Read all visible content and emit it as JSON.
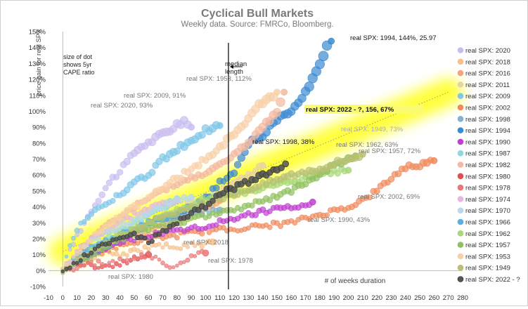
{
  "chart_data": {
    "type": "scatter",
    "title": "Cyclical Bull Markets",
    "subtitle": "Weekly data.  Source: FMRCo, Bloomberg.",
    "xlabel": "# of weeks duration",
    "ylabel": "price gain for real SPX",
    "xlim": [
      -10,
      280
    ],
    "ylim": [
      -10,
      150
    ],
    "x_ticks": [
      "-10",
      "0",
      "10",
      "20",
      "30",
      "40",
      "50",
      "60",
      "70",
      "80",
      "90",
      "100",
      "110",
      "120",
      "130",
      "140",
      "150",
      "160",
      "170",
      "180",
      "190",
      "200",
      "210",
      "220",
      "230",
      "240",
      "250",
      "260",
      "270",
      "280"
    ],
    "y_ticks": [
      "-10%",
      "0%",
      "10%",
      "20%",
      "30%",
      "40%",
      "50%",
      "60%",
      "70%",
      "80%",
      "90%",
      "100%",
      "110%",
      "120%",
      "130%",
      "140%",
      "150%"
    ],
    "grid": false,
    "legend_position": "right",
    "size_note": "size of dot shows 5yr CAPE ratio",
    "median_label": "median length",
    "median_x": 116,
    "trend": {
      "from": [
        0,
        12
      ],
      "to": [
        270,
        112
      ]
    },
    "series": [
      {
        "name": "real SPX: 2020",
        "color": "#c9bdf0",
        "end_label": "real SPX: 2020, 93%",
        "points": [
          [
            0,
            0
          ],
          [
            5,
            12
          ],
          [
            10,
            22
          ],
          [
            15,
            30
          ],
          [
            20,
            38
          ],
          [
            25,
            45
          ],
          [
            30,
            52
          ],
          [
            35,
            58
          ],
          [
            40,
            62
          ],
          [
            45,
            68
          ],
          [
            50,
            74
          ],
          [
            55,
            78
          ],
          [
            60,
            80
          ],
          [
            65,
            83
          ],
          [
            70,
            86
          ],
          [
            75,
            88
          ],
          [
            80,
            92
          ],
          [
            85,
            93
          ],
          [
            90,
            90
          ]
        ]
      },
      {
        "name": "real SPX: 2018",
        "color": "#f5c08c",
        "points": [
          [
            0,
            0
          ],
          [
            10,
            4
          ],
          [
            20,
            8
          ],
          [
            30,
            12
          ],
          [
            40,
            10
          ],
          [
            50,
            12
          ],
          [
            60,
            14
          ],
          [
            70,
            16
          ],
          [
            80,
            14
          ],
          [
            90,
            17
          ],
          [
            100,
            16
          ],
          [
            105,
            18
          ]
        ]
      },
      {
        "name": "real SPX: 2016",
        "color": "#f4a582",
        "points": [
          [
            0,
            0
          ],
          [
            10,
            5
          ],
          [
            20,
            10
          ],
          [
            30,
            14
          ],
          [
            40,
            18
          ],
          [
            50,
            22
          ],
          [
            60,
            24
          ],
          [
            70,
            28
          ],
          [
            80,
            32
          ],
          [
            90,
            36
          ],
          [
            100,
            40
          ],
          [
            110,
            44
          ]
        ]
      },
      {
        "name": "real SPX: 2011",
        "color": "#e6d3a8",
        "points": [
          [
            0,
            0
          ],
          [
            10,
            6
          ],
          [
            20,
            12
          ],
          [
            30,
            18
          ],
          [
            40,
            22
          ],
          [
            50,
            26
          ],
          [
            60,
            30
          ],
          [
            70,
            34
          ],
          [
            80,
            38
          ],
          [
            90,
            42
          ],
          [
            100,
            46
          ],
          [
            110,
            50
          ],
          [
            120,
            55
          ],
          [
            130,
            60
          ],
          [
            140,
            66
          ]
        ]
      },
      {
        "name": "real SPX: 2009",
        "color": "#7fc8e8",
        "end_label": "real SPX: 2009, 91%",
        "points": [
          [
            0,
            0
          ],
          [
            5,
            15
          ],
          [
            10,
            25
          ],
          [
            15,
            32
          ],
          [
            20,
            36
          ],
          [
            25,
            40
          ],
          [
            30,
            42
          ],
          [
            40,
            48
          ],
          [
            50,
            55
          ],
          [
            60,
            60
          ],
          [
            70,
            70
          ],
          [
            80,
            76
          ],
          [
            90,
            82
          ],
          [
            100,
            88
          ],
          [
            110,
            91
          ]
        ]
      },
      {
        "name": "real SPX: 2002",
        "color": "#f08a5d",
        "end_label": "real SPX: 2002, 69%",
        "points": [
          [
            0,
            0
          ],
          [
            20,
            10
          ],
          [
            40,
            15
          ],
          [
            60,
            20
          ],
          [
            80,
            22
          ],
          [
            100,
            25
          ],
          [
            120,
            26
          ],
          [
            140,
            28
          ],
          [
            160,
            30
          ],
          [
            180,
            35
          ],
          [
            200,
            40
          ],
          [
            210,
            44
          ],
          [
            220,
            50
          ],
          [
            230,
            58
          ],
          [
            240,
            65
          ],
          [
            250,
            66
          ],
          [
            260,
            69
          ]
        ]
      },
      {
        "name": "real SPX: 1998",
        "color": "#7fb2d6",
        "end_label": "real SPX: 1998, 38%",
        "points": [
          [
            0,
            0
          ],
          [
            10,
            5
          ],
          [
            20,
            10
          ],
          [
            30,
            15
          ],
          [
            40,
            20
          ],
          [
            50,
            25
          ],
          [
            60,
            28
          ],
          [
            70,
            32
          ],
          [
            80,
            35
          ],
          [
            90,
            36
          ],
          [
            100,
            37
          ],
          [
            110,
            38
          ]
        ]
      },
      {
        "name": "real SPX: 1994",
        "color": "#3c8ad1",
        "end_label": "real SPX: 1994, 144%, 25.97",
        "points": [
          [
            0,
            0
          ],
          [
            20,
            10
          ],
          [
            40,
            20
          ],
          [
            60,
            30
          ],
          [
            80,
            35
          ],
          [
            100,
            45
          ],
          [
            110,
            55
          ],
          [
            120,
            62
          ],
          [
            130,
            80
          ],
          [
            140,
            85
          ],
          [
            150,
            95
          ],
          [
            160,
            100
          ],
          [
            170,
            112
          ],
          [
            180,
            130
          ],
          [
            185,
            140
          ],
          [
            188,
            144
          ]
        ]
      },
      {
        "name": "real SPX: 1990",
        "color": "#c040d0",
        "end_label": "real SPX: 1990, 43%",
        "points": [
          [
            0,
            0
          ],
          [
            20,
            10
          ],
          [
            40,
            18
          ],
          [
            60,
            22
          ],
          [
            80,
            25
          ],
          [
            100,
            28
          ],
          [
            120,
            33
          ],
          [
            140,
            37
          ],
          [
            160,
            40
          ],
          [
            175,
            43
          ]
        ]
      },
      {
        "name": "real SPX: 1987",
        "color": "#8fd8e0",
        "points": [
          [
            0,
            0
          ],
          [
            10,
            8
          ],
          [
            20,
            14
          ],
          [
            30,
            20
          ],
          [
            40,
            24
          ],
          [
            50,
            30
          ],
          [
            60,
            34
          ],
          [
            70,
            40
          ],
          [
            80,
            45
          ]
        ]
      },
      {
        "name": "real SPX: 1982",
        "color": "#f3b89e",
        "points": [
          [
            0,
            0
          ],
          [
            10,
            10
          ],
          [
            20,
            20
          ],
          [
            30,
            28
          ],
          [
            40,
            34
          ],
          [
            50,
            40
          ],
          [
            60,
            45
          ],
          [
            70,
            50
          ],
          [
            80,
            54
          ],
          [
            90,
            58
          ],
          [
            100,
            62
          ],
          [
            110,
            66
          ],
          [
            120,
            72
          ],
          [
            130,
            80
          ],
          [
            140,
            90
          ],
          [
            150,
            100
          ],
          [
            155,
            112
          ]
        ]
      },
      {
        "name": "real SPX: 1980",
        "color": "#e05050",
        "end_label": "real SPX: 1980",
        "points": [
          [
            0,
            0
          ],
          [
            5,
            3
          ],
          [
            10,
            5
          ],
          [
            15,
            4
          ],
          [
            20,
            3
          ],
          [
            25,
            2
          ],
          [
            30,
            2
          ],
          [
            35,
            3
          ],
          [
            40,
            4
          ],
          [
            45,
            6
          ],
          [
            50,
            8
          ],
          [
            55,
            9
          ],
          [
            60,
            10
          ]
        ]
      },
      {
        "name": "real SPX: 1978",
        "color": "#e87878",
        "end_label": "real SPX: 1978",
        "points": [
          [
            0,
            0
          ],
          [
            10,
            2
          ],
          [
            20,
            5
          ],
          [
            30,
            4
          ],
          [
            40,
            6
          ],
          [
            50,
            8
          ],
          [
            60,
            10
          ],
          [
            70,
            5
          ],
          [
            75,
            3
          ],
          [
            80,
            4
          ],
          [
            85,
            6
          ],
          [
            90,
            8
          ],
          [
            95,
            10
          ],
          [
            100,
            11
          ]
        ]
      },
      {
        "name": "real SPX: 1974",
        "color": "#e6b8e0",
        "points": [
          [
            0,
            0
          ],
          [
            10,
            12
          ],
          [
            20,
            20
          ],
          [
            30,
            25
          ],
          [
            40,
            30
          ],
          [
            50,
            35
          ],
          [
            60,
            38
          ],
          [
            70,
            42
          ],
          [
            80,
            44
          ]
        ]
      },
      {
        "name": "real SPX: 1970",
        "color": "#b8d8f0",
        "points": [
          [
            0,
            0
          ],
          [
            10,
            10
          ],
          [
            20,
            18
          ],
          [
            30,
            24
          ],
          [
            40,
            28
          ],
          [
            50,
            32
          ],
          [
            60,
            36
          ],
          [
            70,
            40
          ],
          [
            80,
            44
          ],
          [
            90,
            46
          ]
        ]
      },
      {
        "name": "real SPX: 1966",
        "color": "#5aaee0",
        "points": [
          [
            0,
            0
          ],
          [
            10,
            8
          ],
          [
            20,
            14
          ],
          [
            30,
            18
          ],
          [
            40,
            22
          ],
          [
            50,
            26
          ],
          [
            60,
            30
          ],
          [
            70,
            32
          ],
          [
            80,
            34
          ]
        ]
      },
      {
        "name": "real SPX: 1962",
        "color": "#a8d878",
        "end_label": "real SPX: 1962, 63%",
        "points": [
          [
            0,
            0
          ],
          [
            20,
            12
          ],
          [
            40,
            22
          ],
          [
            60,
            30
          ],
          [
            80,
            38
          ],
          [
            100,
            45
          ],
          [
            120,
            48
          ],
          [
            140,
            52
          ],
          [
            160,
            56
          ],
          [
            180,
            60
          ],
          [
            190,
            62
          ],
          [
            200,
            63
          ]
        ]
      },
      {
        "name": "real SPX: 1957",
        "color": "#90c060",
        "end_label": "real SPX: 1957, 72%",
        "points": [
          [
            0,
            0
          ],
          [
            20,
            10
          ],
          [
            40,
            20
          ],
          [
            60,
            26
          ],
          [
            80,
            30
          ],
          [
            100,
            34
          ],
          [
            120,
            38
          ],
          [
            140,
            44
          ],
          [
            160,
            50
          ],
          [
            170,
            55
          ],
          [
            180,
            60
          ],
          [
            190,
            66
          ],
          [
            200,
            70
          ],
          [
            205,
            72
          ]
        ]
      },
      {
        "name": "real SPX: 1953",
        "color": "#f8d0a8",
        "end_label": "real SPX: 1953, 112%",
        "points": [
          [
            0,
            0
          ],
          [
            10,
            10
          ],
          [
            20,
            20
          ],
          [
            30,
            28
          ],
          [
            40,
            34
          ],
          [
            50,
            40
          ],
          [
            60,
            45
          ],
          [
            70,
            52
          ],
          [
            80,
            58
          ],
          [
            90,
            64
          ],
          [
            100,
            70
          ],
          [
            110,
            78
          ],
          [
            120,
            86
          ],
          [
            130,
            96
          ],
          [
            140,
            106
          ],
          [
            150,
            112
          ]
        ]
      },
      {
        "name": "real SPX: 1949",
        "color": "#b8c070",
        "end_label": "real SPX: 1949, 73%",
        "points": [
          [
            0,
            0
          ],
          [
            20,
            12
          ],
          [
            40,
            22
          ],
          [
            60,
            30
          ],
          [
            80,
            36
          ],
          [
            100,
            42
          ],
          [
            120,
            48
          ],
          [
            140,
            54
          ],
          [
            160,
            60
          ],
          [
            180,
            64
          ],
          [
            200,
            70
          ],
          [
            210,
            73
          ]
        ]
      },
      {
        "name": "real SPX: 2022 - ?",
        "color": "#555555",
        "end_label": "real SPX: 2022 - ?, 156, 67%",
        "points": [
          [
            0,
            0
          ],
          [
            10,
            6
          ],
          [
            20,
            12
          ],
          [
            30,
            18
          ],
          [
            40,
            20
          ],
          [
            50,
            22
          ],
          [
            60,
            18
          ],
          [
            70,
            24
          ],
          [
            80,
            30
          ],
          [
            90,
            36
          ],
          [
            100,
            40
          ],
          [
            110,
            48
          ],
          [
            120,
            52
          ],
          [
            130,
            56
          ],
          [
            140,
            60
          ],
          [
            150,
            64
          ],
          [
            156,
            67
          ]
        ]
      }
    ]
  }
}
